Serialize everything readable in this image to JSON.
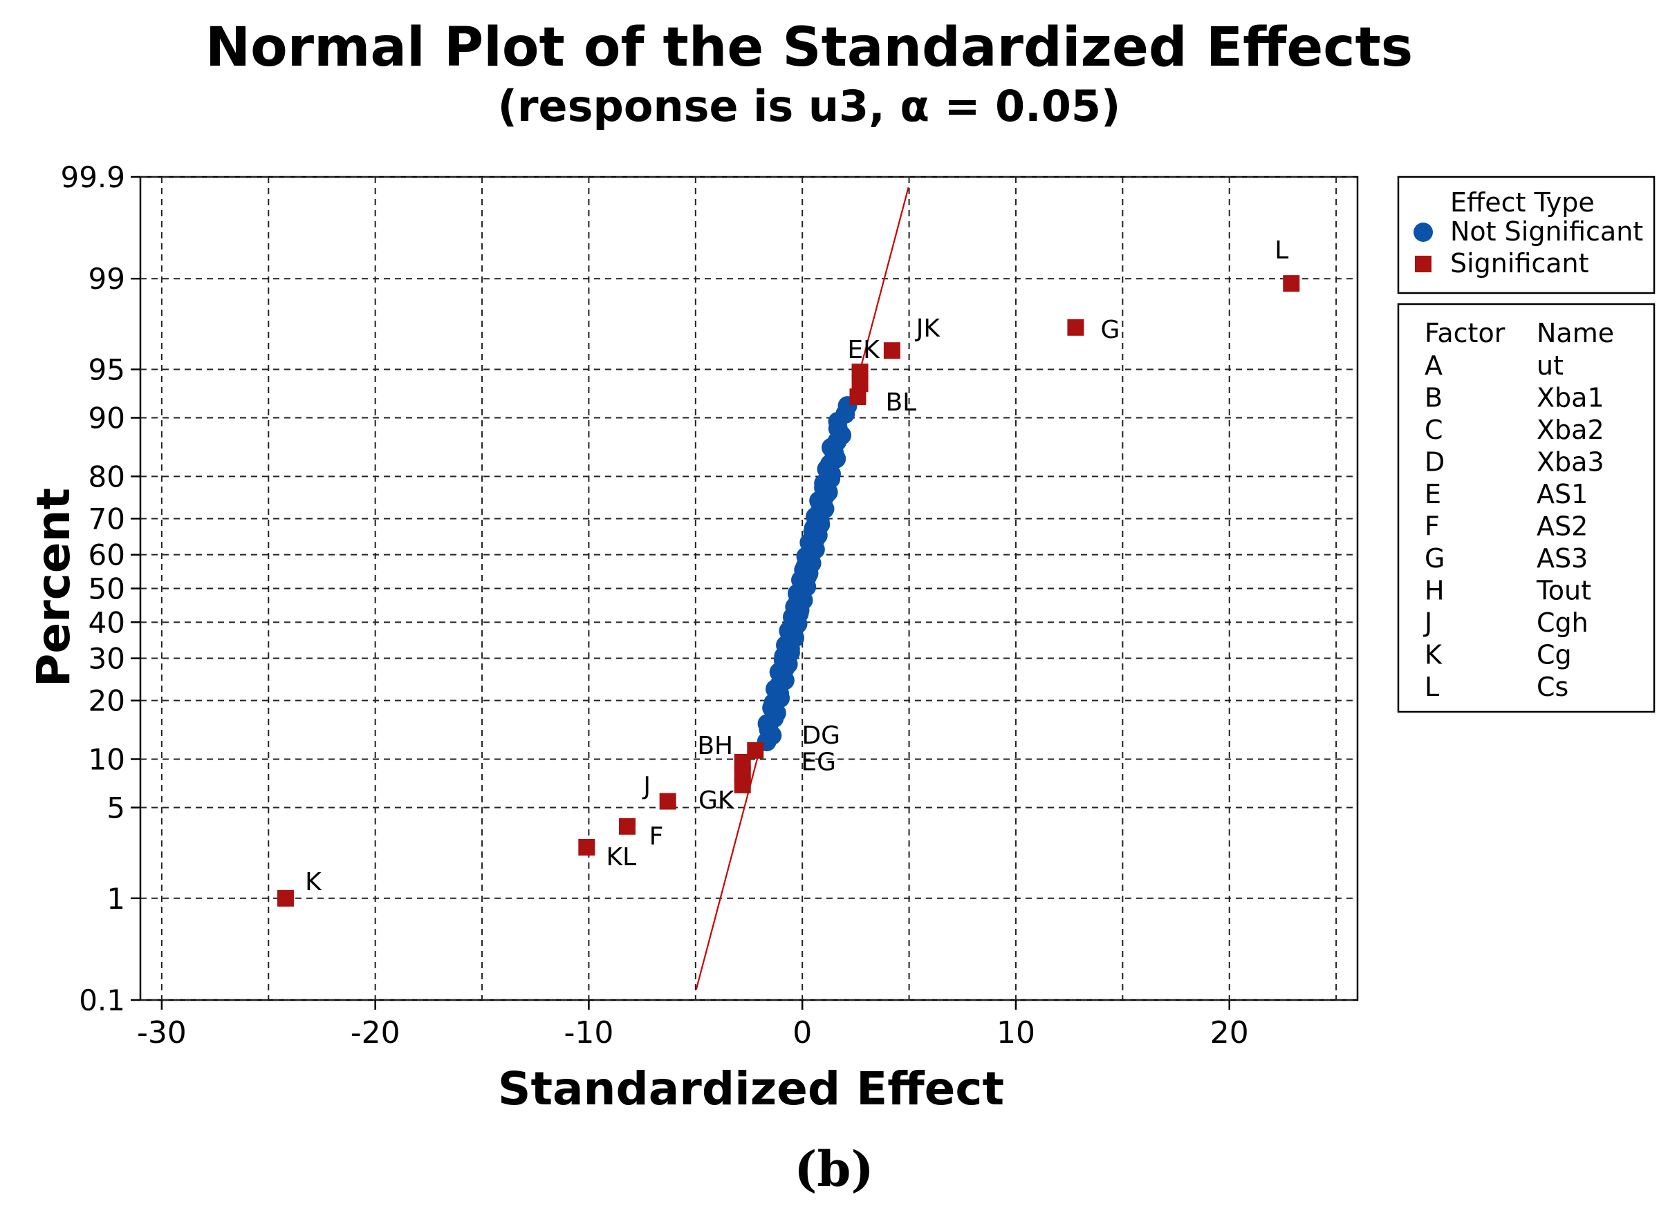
{
  "chart_data": {
    "type": "scatter",
    "title": "Normal Plot of the Standardized Effects",
    "subtitle": "(response is u3, α = 0.05)",
    "xlabel": "Standardized Effect",
    "ylabel": "Percent",
    "xlim": [
      -31,
      26
    ],
    "ylim_percent": [
      0.1,
      99.9
    ],
    "y_scale": "normal-probability",
    "x_ticks": [
      -30,
      -20,
      -10,
      0,
      10,
      20
    ],
    "x_tick_labels": [
      "-30",
      "-20",
      "-10",
      "0",
      "10",
      "20"
    ],
    "x_gridlines": [
      -30,
      -25,
      -20,
      -15,
      -10,
      -5,
      0,
      5,
      10,
      15,
      20,
      25
    ],
    "y_ticks": [
      0.1,
      1,
      5,
      10,
      20,
      30,
      40,
      50,
      60,
      70,
      80,
      90,
      95,
      99,
      99.9
    ],
    "y_tick_labels": [
      "0.1",
      "1",
      "5",
      "10",
      "20",
      "30",
      "40",
      "50",
      "60",
      "70",
      "80",
      "90",
      "95",
      "99",
      "99.9"
    ],
    "grid": true,
    "reference_line": {
      "color": "#cc0000",
      "at_50_percent": 0.0,
      "slope_effect_per_z": 1.65
    },
    "legend": {
      "position": "right",
      "title": "Effect Type",
      "entries": [
        {
          "label": "Not Significant",
          "marker": "circle",
          "color": "#0b52a8"
        },
        {
          "label": "Significant",
          "marker": "square",
          "color": "#aa1111"
        }
      ]
    },
    "factor_table": {
      "headers": [
        "Factor",
        "Name"
      ],
      "rows": [
        [
          "A",
          "ut"
        ],
        [
          "B",
          "Xba1"
        ],
        [
          "C",
          "Xba2"
        ],
        [
          "D",
          "Xba3"
        ],
        [
          "E",
          "AS1"
        ],
        [
          "F",
          "AS2"
        ],
        [
          "G",
          "AS3"
        ],
        [
          "H",
          "Tout"
        ],
        [
          "J",
          "Cgh"
        ],
        [
          "K",
          "Cg"
        ],
        [
          "L",
          "Cs"
        ]
      ]
    },
    "series": [
      {
        "name": "Significant",
        "color": "#aa1111",
        "points": [
          {
            "label": "K",
            "x": -24.2,
            "y": 1.0
          },
          {
            "label": "KL",
            "x": -10.1,
            "y": 2.6
          },
          {
            "label": "F",
            "x": -8.2,
            "y": 3.7
          },
          {
            "label": "J",
            "x": -6.3,
            "y": 5.5
          },
          {
            "label": "GK",
            "x": -2.8,
            "y": 7.0
          },
          {
            "label": "EG",
            "x": -2.8,
            "y": 8.2
          },
          {
            "label": "",
            "x": -2.8,
            "y": 9.6
          },
          {
            "label": "BH",
            "x": -2.2,
            "y": 11.2
          },
          {
            "label": "BL",
            "x": 2.6,
            "y": 92.5
          },
          {
            "label": "",
            "x": 2.7,
            "y": 93.8
          },
          {
            "label": "EK",
            "x": 2.7,
            "y": 94.8
          },
          {
            "label": "JK",
            "x": 4.2,
            "y": 96.3
          },
          {
            "label": "G",
            "x": 12.8,
            "y": 97.5
          },
          {
            "label": "L",
            "x": 22.9,
            "y": 98.9
          }
        ]
      },
      {
        "name": "Not Significant",
        "color": "#0b52a8",
        "range_percent": [
          12.5,
          91.5
        ],
        "x_at_50": 0.0,
        "spread": 1.45,
        "count": 80
      }
    ],
    "annotations": [
      {
        "text": "DG",
        "near": "BH",
        "note": "label only"
      }
    ]
  },
  "caption": "(b)"
}
